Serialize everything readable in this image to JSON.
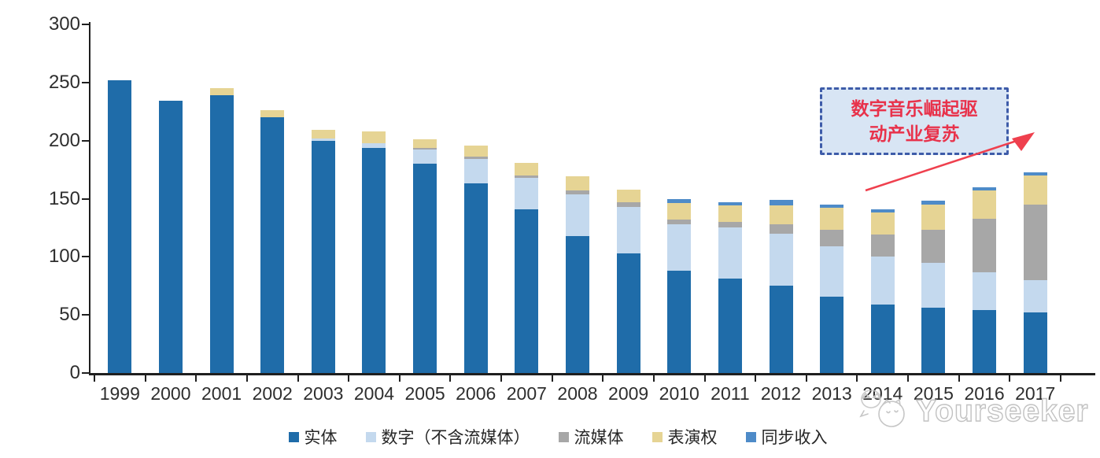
{
  "chart_data": {
    "type": "bar",
    "stacked": true,
    "title": "",
    "xlabel": "",
    "ylabel": "",
    "ylim": [
      0,
      300
    ],
    "y_ticks": [
      0,
      50,
      100,
      150,
      200,
      250,
      300
    ],
    "grid": false,
    "legend_position": "bottom",
    "categories": [
      "1999",
      "2000",
      "2001",
      "2002",
      "2003",
      "2004",
      "2005",
      "2006",
      "2007",
      "2008",
      "2009",
      "2010",
      "2011",
      "2012",
      "2013",
      "2014",
      "2015",
      "2016",
      "2017"
    ],
    "series": [
      {
        "key": "physical",
        "name": "实体",
        "color": "#1F6CA9",
        "values": [
          252,
          234,
          239,
          220,
          200,
          194,
          180,
          163,
          141,
          118,
          103,
          88,
          81,
          75,
          66,
          59,
          56,
          54,
          52
        ]
      },
      {
        "key": "digital-excl-streaming",
        "name": "数字（不含流媒体）",
        "color": "#C4D9EE",
        "values": [
          0,
          0,
          0,
          0,
          2,
          4,
          12,
          21,
          27,
          36,
          40,
          40,
          44,
          45,
          43,
          41,
          39,
          33,
          28
        ]
      },
      {
        "key": "streaming",
        "name": "流媒体",
        "color": "#A7A7A7",
        "values": [
          0,
          0,
          0,
          0,
          0,
          0,
          2,
          2,
          2,
          3,
          4,
          4,
          5,
          8,
          14,
          19,
          28,
          46,
          65
        ]
      },
      {
        "key": "performance-rights",
        "name": "表演权",
        "color": "#E6D494",
        "values": [
          0,
          0,
          6,
          6,
          7,
          10,
          7,
          10,
          11,
          12,
          11,
          14,
          14,
          16,
          19,
          19,
          22,
          24,
          25
        ]
      },
      {
        "key": "sync-revenue",
        "name": "同步收入",
        "color": "#4E8BC8",
        "values": [
          0,
          0,
          0,
          0,
          0,
          0,
          0,
          0,
          0,
          0,
          0,
          4,
          3,
          5,
          3,
          3,
          3,
          3,
          3
        ]
      }
    ]
  },
  "annotation": {
    "line1": "数字音乐崛起驱",
    "line2": "动产业复苏",
    "text_color": "#E8324B",
    "border_color": "#3E5CA9",
    "fill_color": "#D8E5F4",
    "arrow_color": "#EF404E"
  },
  "watermark": {
    "text": "Yourseeker"
  },
  "axis": {
    "line_color": "#1F1F1F",
    "label_color": "#2E2E2E"
  }
}
